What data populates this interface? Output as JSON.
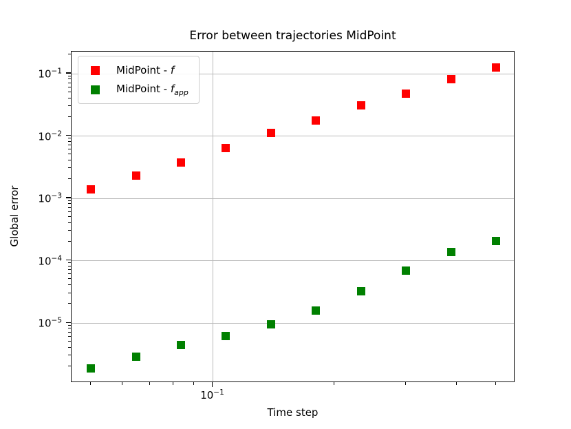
{
  "figure": {
    "title": "Error between trajectories MidPoint",
    "xlabel": "Time step",
    "ylabel": "Global error"
  },
  "legend": {
    "items": [
      {
        "label_prefix": "MidPoint - ",
        "symbol": "f",
        "subscript": "",
        "color": "#ff0000"
      },
      {
        "label_prefix": "MidPoint - ",
        "symbol": "f",
        "subscript": "app",
        "color": "#008000"
      }
    ]
  },
  "chart_data": {
    "type": "scatter",
    "title": "Error between trajectories MidPoint",
    "xlabel": "Time step",
    "ylabel": "Global error",
    "x_scale": "log",
    "y_scale": "log",
    "xlim": [
      0.0448,
      0.557
    ],
    "ylim": [
      1.1e-06,
      0.226
    ],
    "grid": true,
    "grid_color": "#b8b8b8",
    "legend_position": "upper-left",
    "marker": "square",
    "x": [
      0.05,
      0.0646,
      0.0834,
      0.1077,
      0.1391,
      0.1797,
      0.2321,
      0.2997,
      0.3871,
      0.5
    ],
    "series": [
      {
        "name": "MidPoint - f",
        "color": "#ff0000",
        "values": [
          0.0014,
          0.0023,
          0.0038,
          0.0064,
          0.0112,
          0.0177,
          0.031,
          0.048,
          0.082,
          0.126
        ]
      },
      {
        "name": "MidPoint - f_app",
        "color": "#008000",
        "values": [
          1.9e-06,
          2.9e-06,
          4.4e-06,
          6.2e-06,
          9.5e-06,
          1.6e-05,
          3.2e-05,
          6.9e-05,
          0.000137,
          0.000207
        ]
      }
    ],
    "x_major_ticks": [
      0.1
    ],
    "x_minor_ticks": [
      0.05,
      0.06,
      0.07,
      0.08,
      0.09,
      0.2,
      0.3,
      0.4,
      0.5
    ],
    "y_major_tick_exponents": [
      -1,
      -2,
      -3,
      -4,
      -5
    ]
  }
}
